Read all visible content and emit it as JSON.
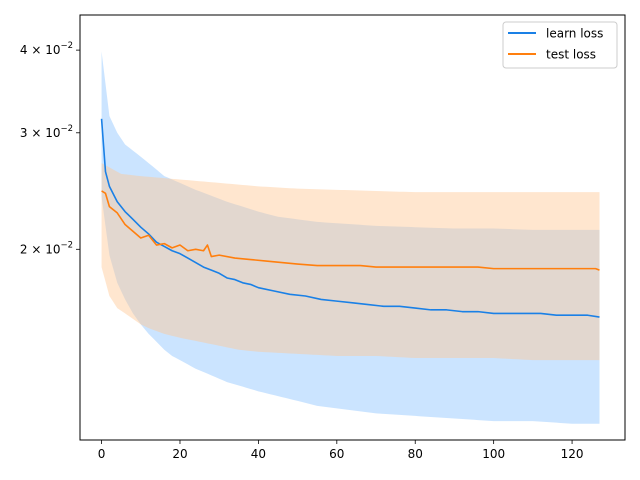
{
  "chart_data": {
    "type": "line",
    "title": "",
    "xlabel": "",
    "ylabel": "",
    "xlim": [
      -5.5,
      133.5
    ],
    "ylim": [
      0.0103,
      0.0452
    ],
    "yscale": "log",
    "grid": false,
    "legend_position": "top-right",
    "x_ticks": [
      0,
      20,
      40,
      60,
      80,
      100,
      120
    ],
    "x_tick_labels": [
      "0",
      "20",
      "40",
      "60",
      "80",
      "100",
      "120"
    ],
    "y_ticks": [
      0.02,
      0.03,
      0.04
    ],
    "y_tick_labels": [
      {
        "mantissa": "2",
        "times": "×",
        "base": "10",
        "exp": "−2"
      },
      {
        "mantissa": "3",
        "times": "×",
        "base": "10",
        "exp": "−2"
      },
      {
        "mantissa": "4",
        "times": "×",
        "base": "10",
        "exp": "−2"
      }
    ],
    "series": [
      {
        "name": "learn loss",
        "color": "#1a80e6",
        "band_color": "#8cc4ff",
        "mean": [
          [
            0,
            0.0315
          ],
          [
            1,
            0.0262
          ],
          [
            2,
            0.0249
          ],
          [
            4,
            0.0236
          ],
          [
            6,
            0.0228
          ],
          [
            8,
            0.0222
          ],
          [
            10,
            0.0216
          ],
          [
            12,
            0.0211
          ],
          [
            14,
            0.0205
          ],
          [
            16,
            0.0202
          ],
          [
            18,
            0.0199
          ],
          [
            20,
            0.0197
          ],
          [
            22,
            0.0194
          ],
          [
            24,
            0.0191
          ],
          [
            26,
            0.0188
          ],
          [
            28,
            0.0186
          ],
          [
            30,
            0.0184
          ],
          [
            32,
            0.0181
          ],
          [
            34,
            0.018
          ],
          [
            36,
            0.0178
          ],
          [
            38,
            0.0177
          ],
          [
            40,
            0.0175
          ],
          [
            44,
            0.0173
          ],
          [
            48,
            0.0171
          ],
          [
            52,
            0.017
          ],
          [
            56,
            0.0168
          ],
          [
            60,
            0.0167
          ],
          [
            64,
            0.0166
          ],
          [
            68,
            0.0165
          ],
          [
            72,
            0.0164
          ],
          [
            76,
            0.0164
          ],
          [
            80,
            0.0163
          ],
          [
            84,
            0.0162
          ],
          [
            88,
            0.0162
          ],
          [
            92,
            0.0161
          ],
          [
            96,
            0.0161
          ],
          [
            100,
            0.016
          ],
          [
            104,
            0.016
          ],
          [
            108,
            0.016
          ],
          [
            112,
            0.016
          ],
          [
            116,
            0.0159
          ],
          [
            120,
            0.0159
          ],
          [
            124,
            0.0159
          ],
          [
            127,
            0.0158
          ]
        ],
        "upper": [
          [
            0,
            0.0398
          ],
          [
            2,
            0.0318
          ],
          [
            4,
            0.03
          ],
          [
            6,
            0.0288
          ],
          [
            8,
            0.0282
          ],
          [
            10,
            0.0276
          ],
          [
            12,
            0.027
          ],
          [
            14,
            0.0264
          ],
          [
            16,
            0.0258
          ],
          [
            18,
            0.0255
          ],
          [
            20,
            0.0252
          ],
          [
            24,
            0.0246
          ],
          [
            28,
            0.0241
          ],
          [
            32,
            0.0236
          ],
          [
            36,
            0.0232
          ],
          [
            40,
            0.0228
          ],
          [
            45,
            0.0224
          ],
          [
            50,
            0.0222
          ],
          [
            55,
            0.022
          ],
          [
            60,
            0.0219
          ],
          [
            70,
            0.0217
          ],
          [
            80,
            0.0216
          ],
          [
            90,
            0.0215
          ],
          [
            100,
            0.0215
          ],
          [
            110,
            0.0214
          ],
          [
            120,
            0.0214
          ],
          [
            127,
            0.0214
          ]
        ],
        "lower": [
          [
            0,
            0.024
          ],
          [
            2,
            0.0196
          ],
          [
            4,
            0.0178
          ],
          [
            6,
            0.0168
          ],
          [
            8,
            0.016
          ],
          [
            10,
            0.0154
          ],
          [
            12,
            0.0149
          ],
          [
            14,
            0.0145
          ],
          [
            16,
            0.0141
          ],
          [
            18,
            0.0138
          ],
          [
            20,
            0.0136
          ],
          [
            24,
            0.0132
          ],
          [
            28,
            0.0129
          ],
          [
            32,
            0.0126
          ],
          [
            36,
            0.0124
          ],
          [
            40,
            0.0122
          ],
          [
            45,
            0.012
          ],
          [
            50,
            0.0118
          ],
          [
            55,
            0.0116
          ],
          [
            60,
            0.0115
          ],
          [
            65,
            0.0114
          ],
          [
            70,
            0.0113
          ],
          [
            80,
            0.0112
          ],
          [
            90,
            0.0111
          ],
          [
            100,
            0.011
          ],
          [
            110,
            0.011
          ],
          [
            120,
            0.0109
          ],
          [
            127,
            0.0109
          ]
        ]
      },
      {
        "name": "test loss",
        "color": "#ff7f0e",
        "band_color": "#ffc895",
        "mean": [
          [
            0,
            0.0245
          ],
          [
            1,
            0.0243
          ],
          [
            2,
            0.0232
          ],
          [
            4,
            0.0227
          ],
          [
            6,
            0.0218
          ],
          [
            8,
            0.0213
          ],
          [
            10,
            0.0208
          ],
          [
            12,
            0.021
          ],
          [
            14,
            0.0203
          ],
          [
            16,
            0.0204
          ],
          [
            18,
            0.0201
          ],
          [
            20,
            0.0203
          ],
          [
            22,
            0.0199
          ],
          [
            24,
            0.02
          ],
          [
            26,
            0.0199
          ],
          [
            27,
            0.0203
          ],
          [
            28,
            0.0195
          ],
          [
            30,
            0.0196
          ],
          [
            34,
            0.0194
          ],
          [
            38,
            0.0193
          ],
          [
            42,
            0.0192
          ],
          [
            46,
            0.0191
          ],
          [
            50,
            0.019
          ],
          [
            55,
            0.0189
          ],
          [
            60,
            0.0189
          ],
          [
            66,
            0.0189
          ],
          [
            70,
            0.0188
          ],
          [
            76,
            0.0188
          ],
          [
            80,
            0.0188
          ],
          [
            86,
            0.0188
          ],
          [
            90,
            0.0188
          ],
          [
            96,
            0.0188
          ],
          [
            100,
            0.0187
          ],
          [
            106,
            0.0187
          ],
          [
            110,
            0.0187
          ],
          [
            116,
            0.0187
          ],
          [
            120,
            0.0187
          ],
          [
            126,
            0.0187
          ],
          [
            127,
            0.0186
          ]
        ],
        "upper": [
          [
            0,
            0.027
          ],
          [
            5,
            0.026
          ],
          [
            10,
            0.0258
          ],
          [
            20,
            0.0255
          ],
          [
            30,
            0.0252
          ],
          [
            40,
            0.0249
          ],
          [
            50,
            0.0247
          ],
          [
            60,
            0.0246
          ],
          [
            70,
            0.0245
          ],
          [
            80,
            0.0244
          ],
          [
            90,
            0.0244
          ],
          [
            100,
            0.0244
          ],
          [
            110,
            0.0244
          ],
          [
            120,
            0.0244
          ],
          [
            127,
            0.0244
          ]
        ],
        "lower": [
          [
            0,
            0.0188
          ],
          [
            2,
            0.017
          ],
          [
            4,
            0.0163
          ],
          [
            6,
            0.016
          ],
          [
            8,
            0.0157
          ],
          [
            10,
            0.0154
          ],
          [
            12,
            0.0152
          ],
          [
            16,
            0.0149
          ],
          [
            20,
            0.0147
          ],
          [
            25,
            0.0145
          ],
          [
            30,
            0.0143
          ],
          [
            35,
            0.0141
          ],
          [
            40,
            0.014
          ],
          [
            50,
            0.0139
          ],
          [
            60,
            0.0138
          ],
          [
            70,
            0.0138
          ],
          [
            80,
            0.0137
          ],
          [
            90,
            0.0137
          ],
          [
            100,
            0.0137
          ],
          [
            110,
            0.0136
          ],
          [
            120,
            0.0136
          ],
          [
            127,
            0.0136
          ]
        ]
      }
    ]
  }
}
